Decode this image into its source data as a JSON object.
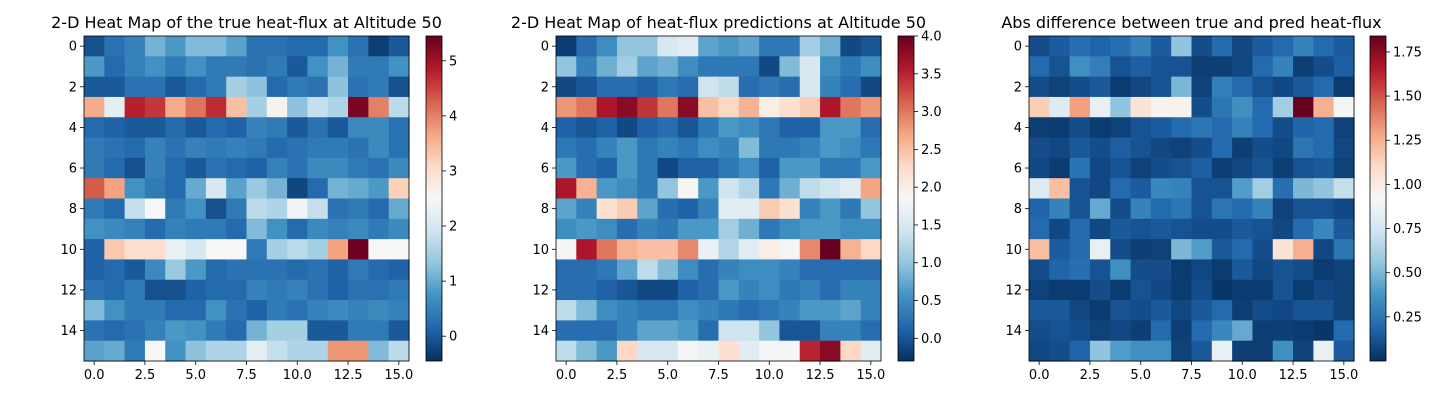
{
  "chart_data": [
    {
      "type": "heatmap",
      "title": "2-D Heat Map of the true heat-flux at Altitude 50",
      "colormap": "RdBu_r",
      "vmin": -0.45,
      "vmax": 5.45,
      "xticks": [
        "0.0",
        "2.5",
        "5.0",
        "7.5",
        "10.0",
        "12.5",
        "15.0"
      ],
      "yticks": [
        "0",
        "2",
        "4",
        "6",
        "8",
        "10",
        "12",
        "14"
      ],
      "colorbar_ticks": [
        "0",
        "1",
        "2",
        "3",
        "4",
        "5"
      ],
      "values": [
        [
          -0.1,
          0.3,
          0.5,
          1.1,
          0.8,
          1.2,
          1.2,
          0.9,
          0.3,
          0.3,
          0.2,
          0.2,
          0.7,
          0.3,
          -0.3,
          0.0
        ],
        [
          0.8,
          0.2,
          0.5,
          0.7,
          0.4,
          0.7,
          0.4,
          0.4,
          0.3,
          0.4,
          0.0,
          0.7,
          1.1,
          0.4,
          0.4,
          0.7
        ],
        [
          0.0,
          0.0,
          0.3,
          0.3,
          0.0,
          0.2,
          0.4,
          1.5,
          1.3,
          0.2,
          0.4,
          0.3,
          1.3,
          0.3,
          0.4,
          -0.1
        ],
        [
          3.6,
          2.2,
          4.8,
          4.6,
          3.6,
          4.1,
          4.7,
          3.4,
          1.5,
          2.6,
          1.3,
          1.8,
          1.6,
          5.3,
          4.0,
          1.7
        ],
        [
          0.2,
          0.1,
          0.0,
          0.0,
          0.2,
          0.0,
          0.2,
          0.1,
          0.5,
          0.4,
          0.0,
          0.3,
          0.0,
          0.6,
          0.6,
          0.3
        ],
        [
          0.4,
          0.3,
          0.2,
          0.5,
          0.3,
          0.5,
          0.4,
          0.5,
          0.4,
          0.2,
          0.3,
          0.4,
          0.4,
          0.3,
          0.6,
          0.3
        ],
        [
          0.4,
          0.2,
          -0.1,
          0.5,
          0.2,
          0.0,
          0.3,
          0.2,
          0.1,
          0.5,
          0.3,
          0.6,
          0.6,
          0.4,
          0.3,
          0.6
        ],
        [
          4.3,
          3.7,
          0.7,
          0.4,
          0.2,
          1.0,
          2.0,
          0.9,
          1.4,
          1.1,
          -0.2,
          0.2,
          1.1,
          1.0,
          0.8,
          3.2
        ],
        [
          0.4,
          0.2,
          1.8,
          2.5,
          0.4,
          0.7,
          -0.1,
          0.4,
          1.7,
          1.6,
          2.4,
          1.8,
          0.3,
          0.4,
          0.2,
          1.0
        ],
        [
          0.7,
          0.6,
          0.5,
          0.2,
          0.5,
          0.4,
          0.4,
          0.2,
          1.2,
          0.7,
          0.2,
          0.6,
          0.5,
          0.6,
          0.4,
          0.6
        ],
        [
          0.1,
          3.3,
          3.0,
          3.0,
          2.3,
          2.0,
          2.5,
          2.5,
          0.4,
          1.5,
          1.7,
          1.5,
          3.7,
          5.4,
          2.5,
          2.5
        ],
        [
          0.1,
          0.2,
          0.0,
          0.6,
          1.4,
          0.8,
          0.2,
          0.3,
          0.3,
          0.3,
          0.2,
          0.3,
          0.1,
          0.4,
          0.2,
          0.1
        ],
        [
          0.3,
          0.2,
          0.4,
          -0.1,
          -0.1,
          0.1,
          0.2,
          0.2,
          0.5,
          0.4,
          0.5,
          0.3,
          0.1,
          0.3,
          0.3,
          0.4
        ],
        [
          1.2,
          0.7,
          0.4,
          0.4,
          0.2,
          0.2,
          0.7,
          0.3,
          0.1,
          0.4,
          0.3,
          0.5,
          0.6,
          0.5,
          0.6,
          0.5
        ],
        [
          0.3,
          0.2,
          0.3,
          0.5,
          0.8,
          0.7,
          0.4,
          0.2,
          1.1,
          1.5,
          1.5,
          0.0,
          0.0,
          0.4,
          0.4,
          0.0
        ],
        [
          0.9,
          1.0,
          0.4,
          2.5,
          0.7,
          1.3,
          1.6,
          1.6,
          2.2,
          1.8,
          1.6,
          1.6,
          3.8,
          3.8,
          1.2,
          1.7
        ]
      ]
    },
    {
      "type": "heatmap",
      "title": "2-D Heat Map of heat-flux predictions at Altitude 50",
      "colormap": "RdBu_r",
      "vmin": -0.3,
      "vmax": 4.0,
      "xticks": [
        "0.0",
        "2.5",
        "5.0",
        "7.5",
        "10.0",
        "12.5",
        "15.0"
      ],
      "yticks": [
        "0",
        "2",
        "4",
        "6",
        "8",
        "10",
        "12",
        "14"
      ],
      "colorbar_ticks": [
        "0.0",
        "0.5",
        "1.0",
        "1.5",
        "2.0",
        "2.5",
        "3.0",
        "3.5",
        "4.0"
      ],
      "values": [
        [
          -0.2,
          0.2,
          0.5,
          1.0,
          1.0,
          1.5,
          1.6,
          0.7,
          0.6,
          0.7,
          0.3,
          0.3,
          1.1,
          0.8,
          -0.1,
          0.0
        ],
        [
          1.0,
          0.4,
          0.8,
          1.1,
          0.7,
          0.8,
          0.5,
          0.3,
          0.3,
          0.3,
          -0.1,
          0.9,
          1.5,
          0.5,
          0.3,
          0.5
        ],
        [
          -0.1,
          0.0,
          0.2,
          0.2,
          0.1,
          0.3,
          0.2,
          1.4,
          1.3,
          0.2,
          0.3,
          0.2,
          1.5,
          0.4,
          0.2,
          -0.1
        ],
        [
          2.8,
          3.0,
          3.6,
          3.8,
          3.4,
          3.0,
          3.8,
          2.5,
          2.3,
          2.6,
          2.0,
          2.2,
          2.4,
          3.6,
          3.0,
          2.8
        ],
        [
          0.1,
          0.0,
          0.1,
          -0.1,
          0.1,
          0.2,
          0.0,
          0.3,
          0.6,
          0.5,
          0.3,
          0.1,
          0.1,
          0.6,
          0.6,
          0.2
        ],
        [
          0.3,
          0.2,
          0.4,
          0.6,
          0.3,
          0.4,
          0.3,
          0.5,
          0.4,
          0.9,
          0.3,
          0.3,
          0.4,
          0.6,
          0.5,
          0.3
        ],
        [
          0.6,
          0.2,
          0.1,
          0.6,
          0.3,
          -0.1,
          0.1,
          0.1,
          0.3,
          0.5,
          0.1,
          0.6,
          0.6,
          0.3,
          0.3,
          0.6
        ],
        [
          3.6,
          2.6,
          0.6,
          0.5,
          0.3,
          1.0,
          1.9,
          0.6,
          1.4,
          1.2,
          0.3,
          0.8,
          1.3,
          1.4,
          1.6,
          2.7
        ],
        [
          0.7,
          0.4,
          2.2,
          2.4,
          0.7,
          0.2,
          0.1,
          0.4,
          1.6,
          1.6,
          2.4,
          2.2,
          0.4,
          0.6,
          0.3,
          1.0
        ],
        [
          0.5,
          0.6,
          0.5,
          0.2,
          0.4,
          0.3,
          0.6,
          0.6,
          1.1,
          0.8,
          0.3,
          0.5,
          0.6,
          0.6,
          0.5,
          0.5
        ],
        [
          1.8,
          3.6,
          3.0,
          2.6,
          2.5,
          2.5,
          2.9,
          1.7,
          1.2,
          1.6,
          2.0,
          1.8,
          2.9,
          4.0,
          2.6,
          2.3
        ],
        [
          0.2,
          0.2,
          0.3,
          0.7,
          1.3,
          0.9,
          0.5,
          0.2,
          0.4,
          0.5,
          0.5,
          0.4,
          0.2,
          0.2,
          0.2,
          0.2
        ],
        [
          0.2,
          0.2,
          0.1,
          0.0,
          -0.1,
          -0.1,
          0.1,
          0.2,
          0.6,
          0.4,
          0.5,
          0.3,
          0.4,
          0.2,
          0.4,
          0.4
        ],
        [
          1.3,
          0.9,
          0.5,
          0.4,
          0.3,
          0.3,
          0.5,
          0.4,
          0.3,
          0.2,
          0.3,
          0.4,
          0.6,
          0.6,
          0.7,
          0.4
        ],
        [
          0.2,
          0.2,
          0.2,
          0.4,
          0.7,
          0.7,
          0.6,
          0.2,
          1.4,
          1.4,
          1.0,
          0.0,
          0.0,
          0.4,
          0.4,
          0.2
        ],
        [
          1.3,
          0.9,
          0.6,
          2.3,
          1.5,
          1.5,
          1.8,
          1.7,
          2.2,
          1.6,
          1.8,
          1.8,
          3.5,
          3.8,
          2.3,
          1.6
        ]
      ]
    },
    {
      "type": "heatmap",
      "title": "Abs difference between true and pred heat-flux",
      "colormap": "RdBu_r",
      "vmin": 0.0,
      "vmax": 1.84,
      "xticks": [
        "0.0",
        "2.5",
        "5.0",
        "7.5",
        "10.0",
        "12.5",
        "15.0"
      ],
      "yticks": [
        "0",
        "2",
        "4",
        "6",
        "8",
        "10",
        "12",
        "14"
      ],
      "colorbar_ticks": [
        "0.25",
        "0.50",
        "0.75",
        "1.00",
        "1.25",
        "1.50",
        "1.75"
      ],
      "values": [
        [
          0.1,
          0.15,
          0.22,
          0.18,
          0.22,
          0.3,
          0.15,
          0.55,
          0.1,
          0.2,
          0.08,
          0.15,
          0.2,
          0.3,
          0.2,
          0.15
        ],
        [
          0.2,
          0.12,
          0.35,
          0.28,
          0.12,
          0.16,
          0.12,
          0.12,
          0.05,
          0.05,
          0.08,
          0.2,
          0.3,
          0.05,
          0.1,
          0.16
        ],
        [
          0.1,
          0.06,
          0.1,
          0.14,
          0.04,
          0.08,
          0.12,
          0.5,
          0.06,
          0.28,
          0.2,
          0.12,
          0.08,
          0.14,
          0.2,
          0.04
        ],
        [
          1.15,
          0.8,
          1.3,
          0.85,
          0.55,
          1.05,
          0.95,
          0.95,
          0.1,
          0.25,
          0.35,
          0.2,
          0.6,
          1.84,
          1.25,
          0.9
        ],
        [
          0.05,
          0.04,
          0.1,
          0.04,
          0.06,
          0.12,
          0.15,
          0.2,
          0.25,
          0.2,
          0.3,
          0.2,
          0.1,
          0.18,
          0.2,
          0.06
        ],
        [
          0.1,
          0.08,
          0.14,
          0.1,
          0.16,
          0.12,
          0.08,
          0.06,
          0.1,
          0.2,
          0.05,
          0.1,
          0.08,
          0.25,
          0.2,
          0.08
        ],
        [
          0.08,
          0.04,
          0.24,
          0.08,
          0.12,
          0.06,
          0.1,
          0.12,
          0.16,
          0.05,
          0.08,
          0.12,
          0.05,
          0.12,
          0.14,
          0.06
        ],
        [
          0.8,
          1.2,
          0.12,
          0.08,
          0.2,
          0.15,
          0.32,
          0.3,
          0.12,
          0.12,
          0.4,
          0.6,
          0.22,
          0.5,
          0.55,
          0.7
        ],
        [
          0.18,
          0.3,
          0.12,
          0.45,
          0.1,
          0.3,
          0.2,
          0.25,
          0.12,
          0.25,
          0.2,
          0.3,
          0.06,
          0.12,
          0.12,
          0.08
        ],
        [
          0.2,
          0.08,
          0.2,
          0.08,
          0.14,
          0.12,
          0.14,
          0.12,
          0.1,
          0.1,
          0.14,
          0.12,
          0.08,
          0.2,
          0.32,
          0.14
        ],
        [
          1.2,
          0.15,
          0.2,
          0.85,
          0.1,
          0.05,
          0.06,
          0.5,
          0.4,
          0.14,
          0.2,
          0.1,
          1.05,
          1.25,
          0.08,
          0.25
        ],
        [
          0.1,
          0.18,
          0.22,
          0.12,
          0.35,
          0.1,
          0.1,
          0.04,
          0.08,
          0.04,
          0.14,
          0.08,
          0.12,
          0.1,
          0.04,
          0.06
        ],
        [
          0.06,
          0.04,
          0.04,
          0.1,
          0.04,
          0.12,
          0.08,
          0.04,
          0.1,
          0.02,
          0.04,
          0.04,
          0.12,
          0.04,
          0.08,
          0.06
        ],
        [
          0.14,
          0.14,
          0.08,
          0.04,
          0.12,
          0.1,
          0.14,
          0.08,
          0.14,
          0.2,
          0.05,
          0.1,
          0.08,
          0.12,
          0.12,
          0.06
        ],
        [
          0.1,
          0.12,
          0.1,
          0.06,
          0.08,
          0.05,
          0.2,
          0.05,
          0.2,
          0.32,
          0.45,
          0.05,
          0.05,
          0.04,
          0.02,
          0.2
        ],
        [
          0.08,
          0.1,
          0.18,
          0.55,
          0.4,
          0.35,
          0.35,
          0.06,
          0.14,
          0.85,
          0.05,
          0.05,
          0.35,
          0.06,
          0.85,
          0.15
        ]
      ]
    }
  ]
}
